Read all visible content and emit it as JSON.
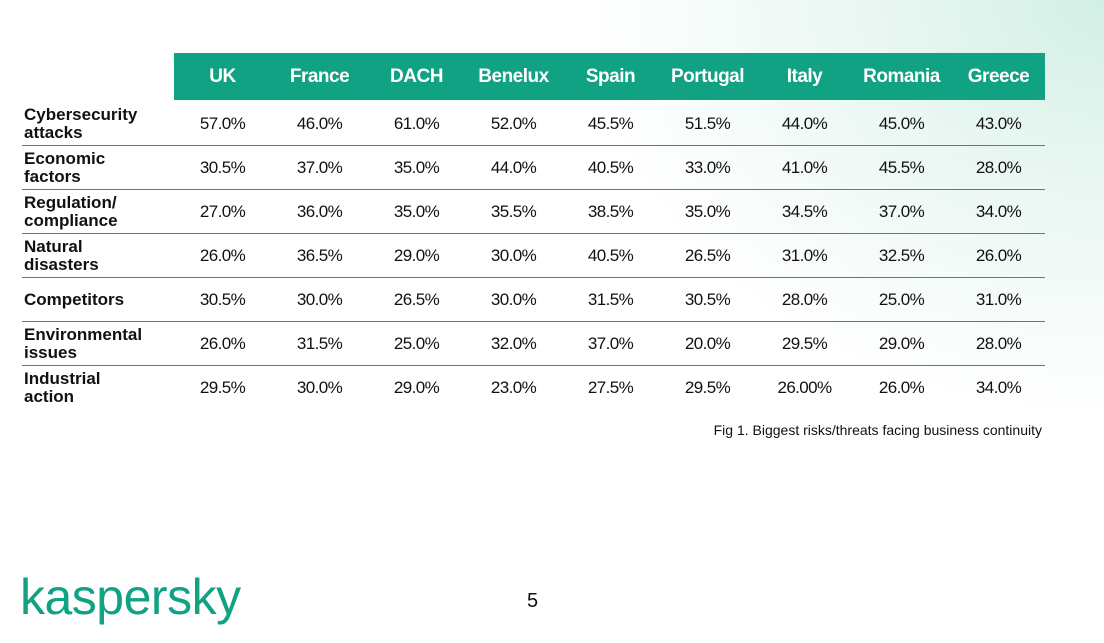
{
  "table": {
    "columns": [
      "UK",
      "France",
      "DACH",
      "Benelux",
      "Spain",
      "Portugal",
      "Italy",
      "Romania",
      "Greece"
    ],
    "rows": [
      {
        "label": "Cybersecurity attacks",
        "cells": [
          "57.0%",
          "46.0%",
          "61.0%",
          "52.0%",
          "45.5%",
          "51.5%",
          "44.0%",
          "45.0%",
          "43.0%"
        ]
      },
      {
        "label": "Economic factors",
        "cells": [
          "30.5%",
          "37.0%",
          "35.0%",
          "44.0%",
          "40.5%",
          "33.0%",
          "41.0%",
          "45.5%",
          "28.0%"
        ]
      },
      {
        "label": "Regulation/ compliance",
        "cells": [
          "27.0%",
          "36.0%",
          "35.0%",
          "35.5%",
          "38.5%",
          "35.0%",
          "34.5%",
          "37.0%",
          "34.0%"
        ]
      },
      {
        "label": "Natural disasters",
        "cells": [
          "26.0%",
          "36.5%",
          "29.0%",
          "30.0%",
          "40.5%",
          "26.5%",
          "31.0%",
          "32.5%",
          "26.0%"
        ]
      },
      {
        "label": "Competitors",
        "cells": [
          "30.5%",
          "30.0%",
          "26.5%",
          "30.0%",
          "31.5%",
          "30.5%",
          "28.0%",
          "25.0%",
          "31.0%"
        ]
      },
      {
        "label": "Environmental issues",
        "cells": [
          "26.0%",
          "31.5%",
          "25.0%",
          "32.0%",
          "37.0%",
          "20.0%",
          "29.5%",
          "29.0%",
          "28.0%"
        ]
      },
      {
        "label": "Industrial action",
        "cells": [
          "29.5%",
          "30.0%",
          "29.0%",
          "23.0%",
          "27.5%",
          "29.5%",
          "26.00%",
          "26.0%",
          "34.0%"
        ]
      }
    ],
    "caption": "Fig 1. Biggest risks/threats facing business continuity"
  },
  "footer": {
    "logo": "kaspersky",
    "page_number": "5"
  }
}
